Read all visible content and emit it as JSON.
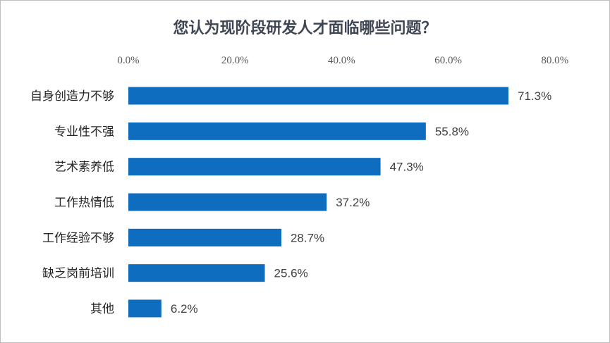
{
  "chart_data": {
    "type": "bar",
    "orientation": "horizontal",
    "title": "您认为现阶段研发人才面临哪些问题？",
    "categories": [
      "自身创造力不够",
      "专业性不强",
      "艺术素养低",
      "工作热情低",
      "工作经验不够",
      "缺乏岗前培训",
      "其他"
    ],
    "values": [
      71.3,
      55.8,
      47.3,
      37.2,
      28.7,
      25.6,
      6.2
    ],
    "value_labels": [
      "71.3%",
      "55.8%",
      "47.3%",
      "37.2%",
      "28.7%",
      "25.6%",
      "6.2%"
    ],
    "xlim": [
      0,
      80
    ],
    "x_ticks": [
      0,
      20,
      40,
      60,
      80
    ],
    "x_tick_labels": [
      "0.0%",
      "20.0%",
      "40.0%",
      "60.0%",
      "80.0%"
    ],
    "axis_position": "top",
    "grid": false,
    "legend": "none",
    "bar_color": "#0f6dbf"
  }
}
